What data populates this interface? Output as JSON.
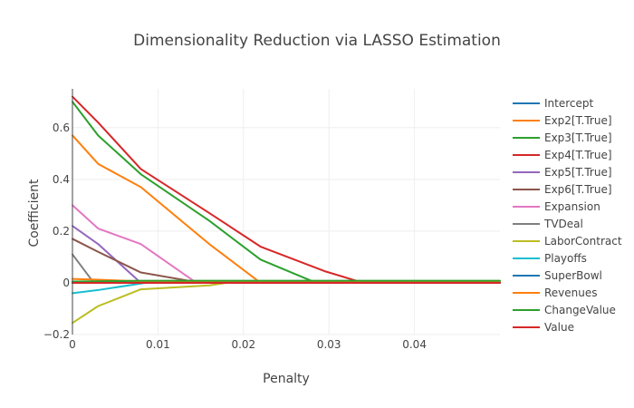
{
  "chart_data": {
    "type": "line",
    "title": "Dimensionality Reduction via LASSO Estimation",
    "xlabel": "Penalty",
    "ylabel": "Coefficient",
    "xlim": [
      0,
      0.05
    ],
    "ylim": [
      -0.2,
      0.75
    ],
    "x_ticks": [
      0,
      0.01,
      0.02,
      0.03,
      0.04
    ],
    "x_tick_labels": [
      "0",
      "0.01",
      "0.02",
      "0.03",
      "0.04"
    ],
    "y_ticks": [
      -0.2,
      0,
      0.2,
      0.4,
      0.6
    ],
    "y_tick_labels": [
      "−0.2",
      "0",
      "0.2",
      "0.4",
      "0.6"
    ],
    "legend_position": "right",
    "series": [
      {
        "name": "Intercept",
        "color": "#1f77b4",
        "x": [
          0,
          0.05
        ],
        "y": [
          0,
          0
        ]
      },
      {
        "name": "Exp2[T.True]",
        "color": "#ff7f0e",
        "x": [
          0,
          0.003,
          0.008,
          0.016,
          0.022,
          0.05
        ],
        "y": [
          0.57,
          0.46,
          0.37,
          0.15,
          0,
          0
        ]
      },
      {
        "name": "Exp3[T.True]",
        "color": "#2ca02c",
        "x": [
          0,
          0.003,
          0.008,
          0.016,
          0.022,
          0.0285,
          0.05
        ],
        "y": [
          0.7,
          0.57,
          0.42,
          0.24,
          0.09,
          0,
          0
        ]
      },
      {
        "name": "Exp4[T.True]",
        "color": "#d62728",
        "x": [
          0,
          0.003,
          0.008,
          0.016,
          0.022,
          0.0295,
          0.034,
          0.05
        ],
        "y": [
          0.72,
          0.62,
          0.44,
          0.27,
          0.14,
          0.045,
          0,
          0
        ]
      },
      {
        "name": "Exp5[T.True]",
        "color": "#9467bd",
        "x": [
          0,
          0.003,
          0.008,
          0.05
        ],
        "y": [
          0.22,
          0.15,
          0,
          0
        ]
      },
      {
        "name": "Exp6[T.True]",
        "color": "#8c564b",
        "x": [
          0,
          0.003,
          0.008,
          0.015,
          0.05
        ],
        "y": [
          0.17,
          0.12,
          0.04,
          0,
          0
        ]
      },
      {
        "name": "Expansion",
        "color": "#e377c2",
        "x": [
          0,
          0.003,
          0.008,
          0.0145,
          0.05
        ],
        "y": [
          0.3,
          0.21,
          0.15,
          0,
          0
        ]
      },
      {
        "name": "TVDeal",
        "color": "#7f7f7f",
        "x": [
          0,
          0.0025,
          0.05
        ],
        "y": [
          0.11,
          0,
          0
        ]
      },
      {
        "name": "LaborContract",
        "color": "#bcbd22",
        "x": [
          0,
          0.003,
          0.008,
          0.016,
          0.018,
          0.05
        ],
        "y": [
          -0.155,
          -0.09,
          -0.025,
          -0.01,
          0,
          0
        ]
      },
      {
        "name": "Playoffs",
        "color": "#17becf",
        "x": [
          0,
          0.003,
          0.0085,
          0.05
        ],
        "y": [
          -0.04,
          -0.028,
          0,
          0
        ]
      },
      {
        "name": "SuperBowl",
        "color": "#1f77b4",
        "x": [
          0,
          0.05
        ],
        "y": [
          0.005,
          0.005
        ]
      },
      {
        "name": "Revenues",
        "color": "#ff7f0e",
        "x": [
          0,
          0.003,
          0.008,
          0.05
        ],
        "y": [
          0.015,
          0.012,
          0.006,
          0.006
        ]
      },
      {
        "name": "ChangeValue",
        "color": "#2ca02c",
        "x": [
          0,
          0.003,
          0.008,
          0.05
        ],
        "y": [
          0.005,
          0.006,
          0.008,
          0.008
        ]
      },
      {
        "name": "Value",
        "color": "#d62728",
        "x": [
          0,
          0.05
        ],
        "y": [
          0,
          0
        ]
      }
    ]
  }
}
